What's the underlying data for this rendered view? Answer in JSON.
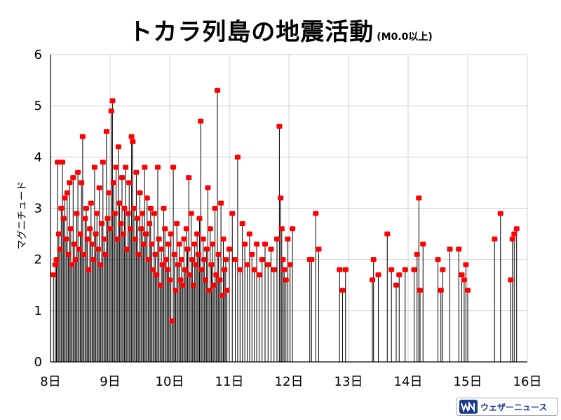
{
  "chart_data": {
    "type": "scatter",
    "title": "トカラ列島の地震活動",
    "subtitle": "(M0.0以上)",
    "xlabel": "",
    "ylabel": "マグニチュード",
    "x_tick_labels": [
      "8日",
      "9日",
      "10日",
      "11日",
      "12日",
      "13日",
      "14日",
      "15日",
      "16日"
    ],
    "x_range_days": [
      8,
      16
    ],
    "y_ticks": [
      "0",
      "1",
      "2",
      "3",
      "4",
      "5",
      "6"
    ],
    "ylim": [
      0,
      6
    ],
    "grid": true,
    "marker_color": "#ff0000",
    "stem_color": "#000000",
    "points": [
      [
        8.05,
        1.7
      ],
      [
        8.08,
        1.9
      ],
      [
        8.1,
        2.0
      ],
      [
        8.12,
        3.9
      ],
      [
        8.14,
        2.5
      ],
      [
        8.16,
        2.2
      ],
      [
        8.18,
        3.0
      ],
      [
        8.2,
        3.9
      ],
      [
        8.22,
        2.8
      ],
      [
        8.24,
        3.2
      ],
      [
        8.26,
        2.4
      ],
      [
        8.28,
        3.3
      ],
      [
        8.3,
        2.1
      ],
      [
        8.32,
        3.5
      ],
      [
        8.34,
        2.6
      ],
      [
        8.36,
        1.9
      ],
      [
        8.38,
        3.6
      ],
      [
        8.4,
        2.3
      ],
      [
        8.42,
        2.0
      ],
      [
        8.44,
        2.9
      ],
      [
        8.46,
        3.7
      ],
      [
        8.48,
        2.2
      ],
      [
        8.5,
        2.5
      ],
      [
        8.52,
        3.5
      ],
      [
        8.54,
        4.4
      ],
      [
        8.56,
        2.1
      ],
      [
        8.58,
        2.8
      ],
      [
        8.6,
        3.0
      ],
      [
        8.62,
        2.4
      ],
      [
        8.64,
        1.8
      ],
      [
        8.66,
        2.6
      ],
      [
        8.68,
        3.1
      ],
      [
        8.7,
        2.3
      ],
      [
        8.72,
        2.0
      ],
      [
        8.74,
        3.8
      ],
      [
        8.76,
        2.5
      ],
      [
        8.78,
        2.9
      ],
      [
        8.8,
        2.2
      ],
      [
        8.82,
        3.4
      ],
      [
        8.84,
        1.9
      ],
      [
        8.86,
        2.7
      ],
      [
        8.88,
        3.9
      ],
      [
        8.9,
        2.4
      ],
      [
        8.92,
        2.1
      ],
      [
        8.94,
        4.5
      ],
      [
        8.96,
        2.8
      ],
      [
        8.98,
        3.3
      ],
      [
        9.0,
        2.6
      ],
      [
        9.02,
        4.9
      ],
      [
        9.04,
        5.1
      ],
      [
        9.06,
        3.5
      ],
      [
        9.08,
        2.9
      ],
      [
        9.1,
        3.8
      ],
      [
        9.12,
        2.4
      ],
      [
        9.14,
        4.2
      ],
      [
        9.16,
        3.1
      ],
      [
        9.18,
        2.7
      ],
      [
        9.2,
        3.6
      ],
      [
        9.22,
        2.5
      ],
      [
        9.24,
        3.0
      ],
      [
        9.26,
        3.8
      ],
      [
        9.28,
        2.2
      ],
      [
        9.3,
        2.9
      ],
      [
        9.32,
        3.5
      ],
      [
        9.34,
        2.6
      ],
      [
        9.36,
        4.4
      ],
      [
        9.38,
        4.3
      ],
      [
        9.4,
        3.0
      ],
      [
        9.42,
        2.4
      ],
      [
        9.44,
        3.7
      ],
      [
        9.46,
        2.8
      ],
      [
        9.48,
        2.1
      ],
      [
        9.5,
        3.3
      ],
      [
        9.52,
        2.6
      ],
      [
        9.54,
        2.9
      ],
      [
        9.56,
        2.3
      ],
      [
        9.58,
        3.8
      ],
      [
        9.6,
        2.5
      ],
      [
        9.62,
        3.2
      ],
      [
        9.64,
        2.0
      ],
      [
        9.66,
        2.7
      ],
      [
        9.68,
        3.0
      ],
      [
        9.7,
        2.3
      ],
      [
        9.72,
        1.8
      ],
      [
        9.74,
        2.9
      ],
      [
        9.76,
        2.1
      ],
      [
        9.78,
        1.7
      ],
      [
        9.8,
        3.8
      ],
      [
        9.82,
        2.4
      ],
      [
        9.84,
        1.5
      ],
      [
        9.86,
        2.2
      ],
      [
        9.88,
        1.9
      ],
      [
        9.9,
        3.0
      ],
      [
        9.92,
        2.6
      ],
      [
        9.94,
        2.0
      ],
      [
        9.96,
        1.8
      ],
      [
        9.98,
        2.3
      ],
      [
        10.0,
        1.6
      ],
      [
        10.02,
        2.5
      ],
      [
        10.04,
        0.8
      ],
      [
        10.06,
        3.8
      ],
      [
        10.08,
        2.1
      ],
      [
        10.1,
        1.4
      ],
      [
        10.12,
        2.7
      ],
      [
        10.14,
        1.9
      ],
      [
        10.16,
        2.3
      ],
      [
        10.18,
        1.6
      ],
      [
        10.2,
        2.0
      ],
      [
        10.22,
        1.5
      ],
      [
        10.24,
        2.4
      ],
      [
        10.26,
        1.8
      ],
      [
        10.28,
        2.6
      ],
      [
        10.3,
        2.2
      ],
      [
        10.32,
        3.6
      ],
      [
        10.34,
        1.7
      ],
      [
        10.36,
        2.9
      ],
      [
        10.38,
        2.0
      ],
      [
        10.4,
        1.5
      ],
      [
        10.42,
        2.3
      ],
      [
        10.44,
        1.9
      ],
      [
        10.46,
        2.5
      ],
      [
        10.48,
        2.1
      ],
      [
        10.5,
        2.8
      ],
      [
        10.52,
        4.7
      ],
      [
        10.54,
        1.8
      ],
      [
        10.56,
        2.4
      ],
      [
        10.58,
        2.0
      ],
      [
        10.6,
        1.6
      ],
      [
        10.62,
        2.2
      ],
      [
        10.64,
        3.4
      ],
      [
        10.66,
        1.4
      ],
      [
        10.68,
        2.6
      ],
      [
        10.7,
        1.9
      ],
      [
        10.72,
        2.3
      ],
      [
        10.74,
        1.5
      ],
      [
        10.76,
        3.0
      ],
      [
        10.78,
        1.7
      ],
      [
        10.8,
        5.3
      ],
      [
        10.82,
        2.1
      ],
      [
        10.84,
        1.6
      ],
      [
        10.86,
        3.1
      ],
      [
        10.88,
        1.3
      ],
      [
        10.9,
        2.4
      ],
      [
        10.92,
        1.8
      ],
      [
        10.94,
        2.0
      ],
      [
        10.96,
        1.4
      ],
      [
        11.0,
        2.2
      ],
      [
        11.05,
        2.9
      ],
      [
        11.1,
        2.0
      ],
      [
        11.14,
        4.0
      ],
      [
        11.18,
        1.8
      ],
      [
        11.22,
        2.7
      ],
      [
        11.26,
        2.3
      ],
      [
        11.3,
        1.9
      ],
      [
        11.34,
        2.5
      ],
      [
        11.38,
        2.1
      ],
      [
        11.42,
        1.8
      ],
      [
        11.46,
        2.3
      ],
      [
        11.5,
        1.7
      ],
      [
        11.55,
        2.0
      ],
      [
        11.6,
        2.3
      ],
      [
        11.65,
        1.9
      ],
      [
        11.7,
        2.2
      ],
      [
        11.75,
        1.8
      ],
      [
        11.8,
        2.4
      ],
      [
        11.84,
        4.6
      ],
      [
        11.86,
        3.2
      ],
      [
        11.88,
        2.6
      ],
      [
        11.9,
        2.0
      ],
      [
        11.92,
        1.8
      ],
      [
        11.95,
        1.6
      ],
      [
        11.98,
        2.4
      ],
      [
        12.02,
        1.9
      ],
      [
        12.06,
        2.6
      ],
      [
        12.35,
        2.0
      ],
      [
        12.38,
        2.0
      ],
      [
        12.45,
        2.9
      ],
      [
        12.5,
        2.2
      ],
      [
        12.85,
        1.8
      ],
      [
        12.9,
        1.4
      ],
      [
        12.95,
        1.8
      ],
      [
        13.4,
        1.6
      ],
      [
        13.42,
        2.0
      ],
      [
        13.5,
        1.7
      ],
      [
        13.65,
        2.5
      ],
      [
        13.72,
        1.8
      ],
      [
        13.8,
        1.5
      ],
      [
        13.85,
        1.7
      ],
      [
        13.95,
        1.8
      ],
      [
        14.1,
        1.8
      ],
      [
        14.15,
        2.1
      ],
      [
        14.18,
        3.2
      ],
      [
        14.2,
        1.4
      ],
      [
        14.25,
        2.3
      ],
      [
        14.5,
        2.0
      ],
      [
        14.55,
        1.4
      ],
      [
        14.58,
        1.8
      ],
      [
        14.7,
        2.2
      ],
      [
        14.85,
        2.2
      ],
      [
        14.9,
        1.7
      ],
      [
        14.94,
        1.6
      ],
      [
        14.97,
        1.9
      ],
      [
        15.0,
        1.4
      ],
      [
        15.45,
        2.4
      ],
      [
        15.55,
        2.9
      ],
      [
        15.72,
        1.6
      ],
      [
        15.75,
        2.4
      ],
      [
        15.78,
        2.5
      ],
      [
        15.82,
        2.6
      ]
    ]
  },
  "brand": {
    "name": "ウェザーニュース"
  }
}
